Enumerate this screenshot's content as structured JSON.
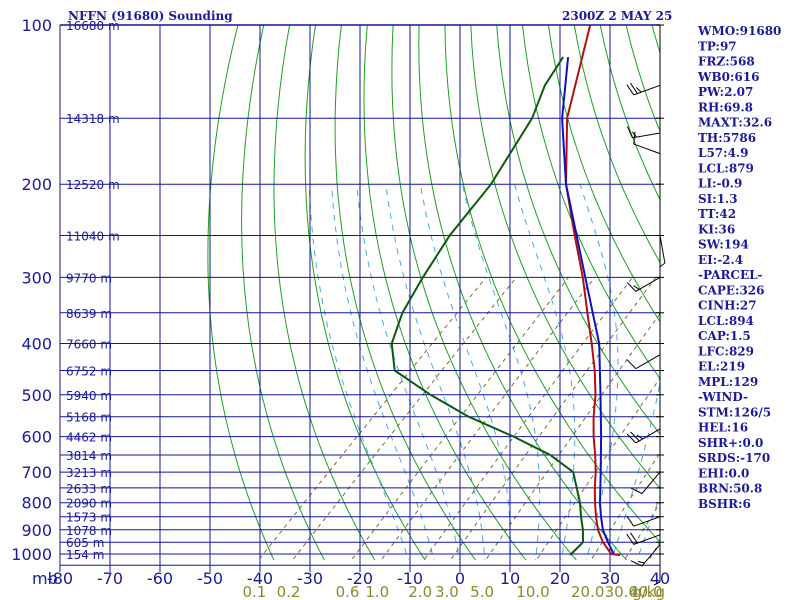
{
  "header": {
    "station_title": "NFFN (91680) Sounding",
    "valid_time": "2300Z  2 MAY 25"
  },
  "colors": {
    "grid": "#1414a0",
    "dry_adiabat": "#1ea01e",
    "moist_adiabat": "#4aa8e8",
    "mixing_ratio": "#707030",
    "temperature": "#b01010",
    "dewpoint": "#0c5a0c",
    "parcel": "#1010c0",
    "label_text": "#1a1a9c",
    "mixing_label": "#8a8a30"
  },
  "chart_data": {
    "type": "skew-t log-p sounding",
    "title": "NFFN (91680) Sounding",
    "pressure_unit_label": "mb",
    "pressure_levels": [
      100,
      200,
      300,
      400,
      500,
      600,
      700,
      800,
      900,
      1000
    ],
    "pressure_range": [
      100,
      1050
    ],
    "temperature_ticks": [
      "-80",
      "-70",
      "-60",
      "-50",
      "-40",
      "-30",
      "-20",
      "-10",
      "0",
      "10",
      "20",
      "30",
      "40"
    ],
    "temperature_range": [
      -80,
      40
    ],
    "height_labels": [
      {
        "p": 100,
        "label": "16680 m"
      },
      {
        "p": 150,
        "label": "14318 m"
      },
      {
        "p": 200,
        "label": "12520 m"
      },
      {
        "p": 250,
        "label": "11040 m"
      },
      {
        "p": 300,
        "label": "9770 m"
      },
      {
        "p": 350,
        "label": "8639 m"
      },
      {
        "p": 400,
        "label": "7660 m"
      },
      {
        "p": 450,
        "label": "6752 m"
      },
      {
        "p": 500,
        "label": "5940 m"
      },
      {
        "p": 550,
        "label": "5168 m"
      },
      {
        "p": 600,
        "label": "4462 m"
      },
      {
        "p": 650,
        "label": "3814 m"
      },
      {
        "p": 700,
        "label": "3213 m"
      },
      {
        "p": 750,
        "label": "2633 m"
      },
      {
        "p": 800,
        "label": "2090 m"
      },
      {
        "p": 850,
        "label": "1573 m"
      },
      {
        "p": 900,
        "label": "1078 m"
      },
      {
        "p": 950,
        "label": "605 m"
      },
      {
        "p": 1000,
        "label": "154 m"
      }
    ],
    "mixing_ratio_labels": [
      "0.1",
      "0.2",
      "0.6",
      "1.0",
      "2.0",
      "3.0",
      "5.0",
      "10.0",
      "20.0",
      "30.0",
      "40.0"
    ],
    "mixing_ratio_unit": "g/kg",
    "temperature_profile": [
      {
        "p": 1005,
        "t": 30.0
      },
      {
        "p": 1000,
        "t": 28.0
      },
      {
        "p": 950,
        "t": 24.0
      },
      {
        "p": 900,
        "t": 20.5
      },
      {
        "p": 850,
        "t": 17.5
      },
      {
        "p": 800,
        "t": 14.5
      },
      {
        "p": 750,
        "t": 11.5
      },
      {
        "p": 700,
        "t": 8.5
      },
      {
        "p": 650,
        "t": 5.0
      },
      {
        "p": 600,
        "t": 1.0
      },
      {
        "p": 550,
        "t": -3.0
      },
      {
        "p": 500,
        "t": -7.0
      },
      {
        "p": 450,
        "t": -12.0
      },
      {
        "p": 400,
        "t": -18.0
      },
      {
        "p": 350,
        "t": -25.0
      },
      {
        "p": 300,
        "t": -33.0
      },
      {
        "p": 250,
        "t": -43.0
      },
      {
        "p": 200,
        "t": -55.0
      },
      {
        "p": 150,
        "t": -68.0
      },
      {
        "p": 100,
        "t": -82.0
      }
    ],
    "dewpoint_profile": [
      {
        "p": 1005,
        "td": 20.0
      },
      {
        "p": 1000,
        "td": 20.0
      },
      {
        "p": 950,
        "td": 20.0
      },
      {
        "p": 900,
        "td": 17.5
      },
      {
        "p": 850,
        "td": 14.5
      },
      {
        "p": 800,
        "td": 11.5
      },
      {
        "p": 700,
        "td": 4.0
      },
      {
        "p": 650,
        "td": -4.0
      },
      {
        "p": 600,
        "td": -15.0
      },
      {
        "p": 550,
        "td": -28.0
      },
      {
        "p": 500,
        "td": -40.0
      },
      {
        "p": 450,
        "td": -52.0
      },
      {
        "p": 400,
        "td": -58.0
      },
      {
        "p": 350,
        "td": -62.0
      },
      {
        "p": 300,
        "td": -65.0
      },
      {
        "p": 250,
        "td": -68.0
      },
      {
        "p": 200,
        "td": -70.0
      },
      {
        "p": 150,
        "td": -75.0
      },
      {
        "p": 130,
        "td": -79.0
      },
      {
        "p": 115,
        "td": -81.0
      }
    ],
    "parcel_profile": [
      {
        "p": 1000,
        "t": 28.5
      },
      {
        "p": 950,
        "t": 25.0
      },
      {
        "p": 900,
        "t": 21.5
      },
      {
        "p": 850,
        "t": 18.5
      },
      {
        "p": 800,
        "t": 15.5
      },
      {
        "p": 700,
        "t": 9.5
      },
      {
        "p": 600,
        "t": 2.5
      },
      {
        "p": 500,
        "t": -6.0
      },
      {
        "p": 400,
        "t": -16.5
      },
      {
        "p": 300,
        "t": -32.5
      },
      {
        "p": 200,
        "t": -55.0
      },
      {
        "p": 150,
        "t": -69.0
      },
      {
        "p": 115,
        "t": -80.0
      }
    ],
    "wind_barbs": [
      {
        "p": 130,
        "dir": 250,
        "kt": 25
      },
      {
        "p": 160,
        "dir": 260,
        "kt": 15
      },
      {
        "p": 175,
        "dir": 290,
        "kt": 10
      },
      {
        "p": 250,
        "dir": 170,
        "kt": 5
      },
      {
        "p": 300,
        "dir": 240,
        "kt": 15
      },
      {
        "p": 420,
        "dir": 240,
        "kt": 10
      },
      {
        "p": 580,
        "dir": 240,
        "kt": 25
      },
      {
        "p": 700,
        "dir": 220,
        "kt": 10
      },
      {
        "p": 850,
        "dir": 250,
        "kt": 10
      },
      {
        "p": 920,
        "dir": 250,
        "kt": 20
      },
      {
        "p": 960,
        "dir": 220,
        "kt": 15
      },
      {
        "p": 1000,
        "dir": 180,
        "kt": 5
      }
    ]
  },
  "indices": [
    "WMO:91680",
    "TP:97",
    "FRZ:568",
    "WB0:616",
    "PW:2.07",
    "RH:69.8",
    "MAXT:32.6",
    "TH:5786",
    "L57:4.9",
    "LCL:879",
    "LI:-0.9",
    "SI:1.3",
    "TT:42",
    "KI:36",
    "SW:194",
    "EI:-2.4",
    "-PARCEL-",
    "CAPE:326",
    "CINH:27",
    "LCL:894",
    "CAP:1.5",
    "LFC:829",
    "EL:219",
    "MPL:129",
    "-WIND-",
    "STM:126/5",
    "HEL:16",
    "SHR+:0.0",
    "SRDS:-170",
    "EHI:0.0",
    "BRN:50.8",
    "BSHR:6"
  ]
}
